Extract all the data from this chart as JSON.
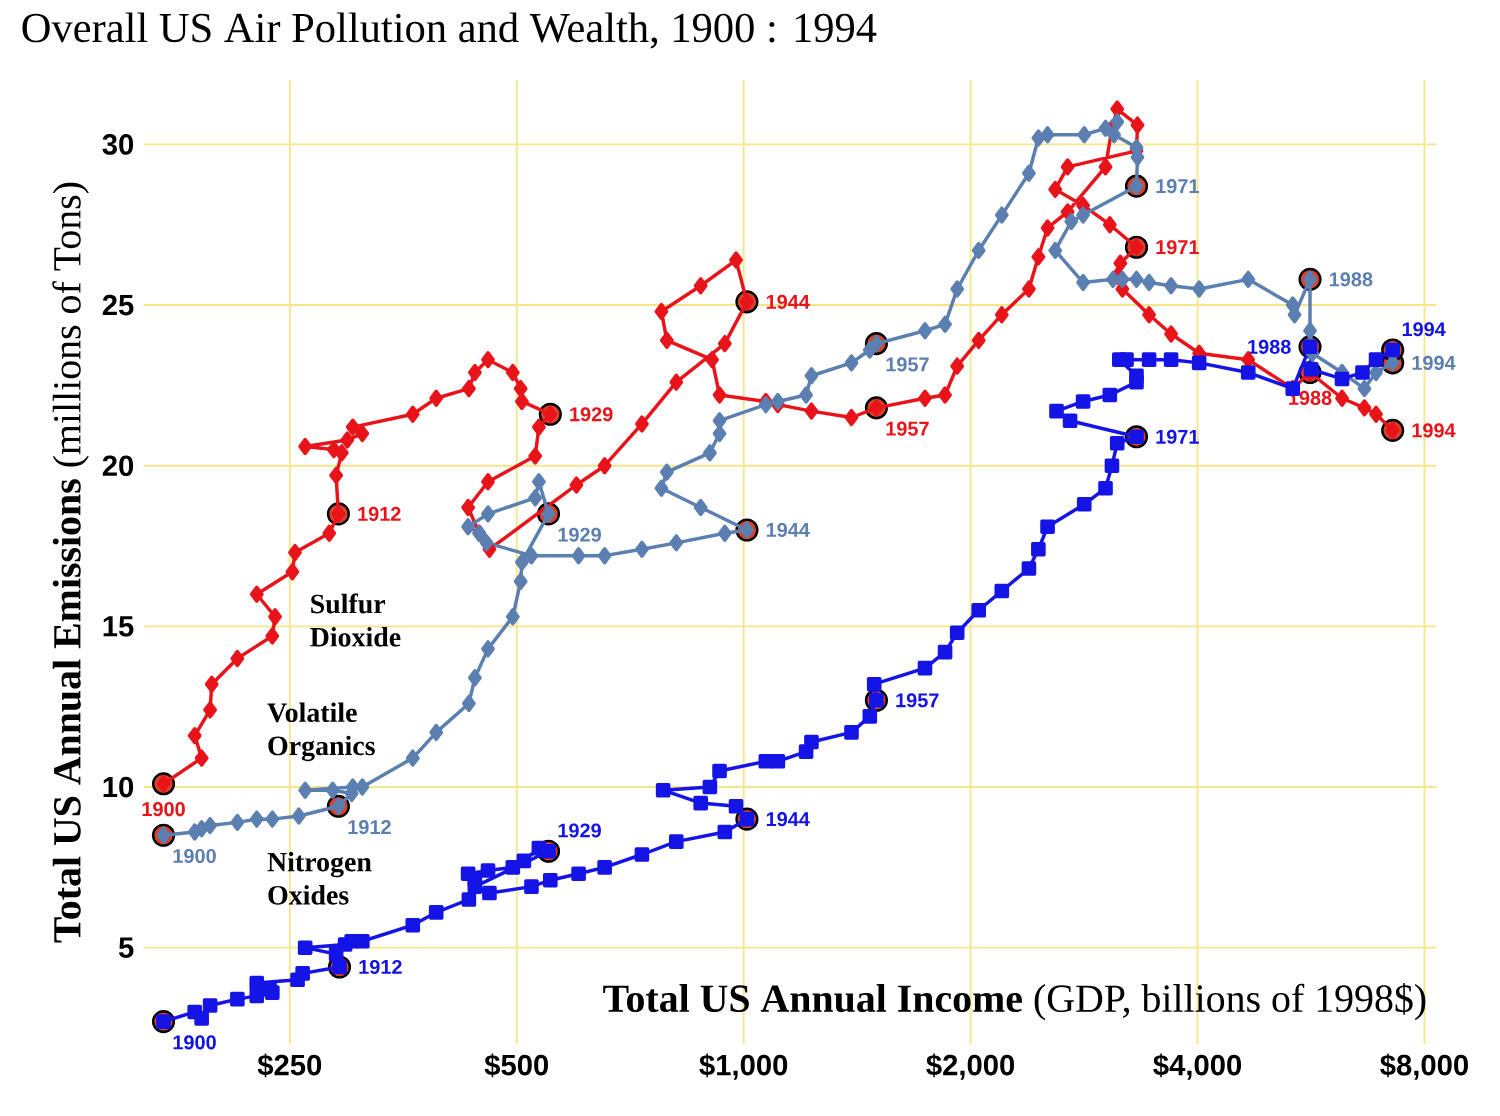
{
  "chart_data": {
    "type": "line",
    "title": "Overall US Air Pollution and Wealth, 1900 : 1994",
    "xlabel": "**Total US Annual Income** (GDP, billions of 1998$)",
    "ylabel": "**Total US Annual Emissions** (millions of Tons)",
    "log": "x",
    "xlim": [
      160,
      8300
    ],
    "ylim": [
      2,
      32
    ],
    "xticks": [
      {
        "value": 250,
        "label": "$250"
      },
      {
        "value": 500,
        "label": "$500"
      },
      {
        "value": 1000,
        "label": "$1,000"
      },
      {
        "value": 2000,
        "label": "$2,000"
      },
      {
        "value": 4000,
        "label": "$4,000"
      },
      {
        "value": 8000,
        "label": "$8,000"
      }
    ],
    "yticks": [
      5,
      10,
      15,
      20,
      25,
      30
    ],
    "grid": true,
    "legend": false,
    "marker": "diamond",
    "line_style": "solid",
    "series": [
      {
        "name": "Sulfur Dioxide",
        "color": "#e8141a",
        "x": [
          170,
          191,
          187,
          196,
          197,
          213,
          237,
          239,
          226,
          252,
          254,
          282,
          290,
          288,
          293,
          286,
          262,
          298,
          312,
          303,
          364,
          391,
          432,
          440,
          458,
          494,
          506,
          508,
          554,
          535,
          529,
          458,
          431,
          446,
          460,
          600,
          654,
          733,
          814,
          944,
          1010,
          977,
          877,
          778,
          791,
          908,
          929,
          1070,
          1110,
          1230,
          1390,
          1500,
          1740,
          1850,
          1920,
          2050,
          2200,
          2390,
          2460,
          2530,
          2690,
          3020,
          3080,
          3130,
          3330,
          3320,
          2690,
          2590,
          2820,
          3060,
          3320,
          3160,
          3130,
          3180,
          3450,
          3690,
          4020,
          4670,
          5350,
          5640,
          6220,
          6660,
          6900,
          7260
        ],
        "values": [
          10.1,
          10.9,
          11.6,
          12.4,
          13.2,
          14.0,
          14.7,
          15.3,
          16.0,
          16.7,
          17.3,
          17.9,
          18.5,
          19.7,
          20.4,
          20.5,
          20.6,
          20.8,
          21.0,
          21.2,
          21.6,
          22.1,
          22.4,
          22.9,
          23.3,
          22.9,
          22.4,
          22.0,
          21.6,
          21.2,
          20.3,
          19.5,
          18.7,
          17.9,
          17.4,
          19.4,
          20.0,
          21.3,
          22.6,
          23.8,
          25.1,
          26.4,
          25.6,
          24.8,
          23.9,
          23.3,
          22.2,
          22.0,
          21.9,
          21.7,
          21.5,
          21.8,
          22.1,
          22.2,
          23.1,
          23.9,
          24.7,
          25.5,
          26.5,
          27.4,
          27.9,
          29.3,
          30.5,
          31.1,
          30.6,
          29.8,
          29.3,
          28.6,
          28.1,
          27.5,
          26.8,
          26.3,
          25.9,
          25.5,
          24.7,
          24.1,
          23.5,
          23.3,
          22.4,
          22.9,
          22.1,
          21.8,
          21.6,
          21.1
        ]
      },
      {
        "name": "Volatile Organics",
        "color": "#5b7fb0",
        "x": [
          170,
          187,
          191,
          196,
          213,
          226,
          237,
          257,
          290,
          302,
          285,
          262,
          303,
          312,
          364,
          391,
          432,
          440,
          458,
          494,
          506,
          508,
          551,
          535,
          529,
          458,
          431,
          446,
          456,
          523,
          604,
          654,
          733,
          814,
          944,
          1010,
          877,
          778,
          791,
          902,
          929,
          929,
          1070,
          1110,
          1210,
          1230,
          1390,
          1470,
          1500,
          1740,
          1850,
          1920,
          2050,
          2200,
          2390,
          2460,
          2530,
          2830,
          3020,
          3130,
          3100,
          3320,
          3330,
          3320,
          2820,
          2720,
          2590,
          2820,
          3090,
          3180,
          3320,
          3450,
          3690,
          4020,
          4670,
          5350,
          5380,
          5640,
          5640,
          5680,
          6220,
          6660,
          6900,
          7260
        ],
        "values": [
          8.5,
          8.6,
          8.7,
          8.8,
          8.9,
          9.0,
          9.0,
          9.1,
          9.4,
          9.8,
          9.9,
          9.9,
          10.0,
          10.0,
          10.9,
          11.7,
          12.6,
          13.4,
          14.3,
          15.3,
          16.4,
          17.0,
          18.5,
          19.5,
          19.0,
          18.5,
          18.1,
          17.9,
          17.6,
          17.2,
          17.2,
          17.2,
          17.4,
          17.6,
          17.9,
          18.0,
          18.7,
          19.3,
          19.8,
          20.4,
          21.0,
          21.4,
          21.9,
          22.0,
          22.2,
          22.8,
          23.2,
          23.6,
          23.8,
          24.2,
          24.4,
          25.5,
          26.7,
          27.8,
          29.1,
          30.2,
          30.3,
          30.3,
          30.5,
          30.7,
          30.3,
          29.9,
          29.6,
          28.7,
          27.8,
          27.6,
          26.7,
          25.7,
          25.8,
          25.8,
          25.8,
          25.7,
          25.6,
          25.5,
          25.8,
          25.0,
          24.7,
          25.8,
          24.2,
          23.5,
          22.9,
          22.4,
          22.9,
          23.2
        ]
      },
      {
        "name": "Nitrogen Oxides",
        "color": "#1414e6",
        "marker": "square",
        "x": [
          170,
          187,
          191,
          196,
          213,
          226,
          237,
          235,
          226,
          256,
          260,
          291,
          288,
          262,
          296,
          302,
          312,
          364,
          391,
          432,
          440,
          431,
          458,
          494,
          511,
          535,
          551,
          440,
          460,
          523,
          554,
          604,
          654,
          733,
          814,
          944,
          1010,
          977,
          877,
          782,
          902,
          929,
          1070,
          1110,
          1210,
          1230,
          1390,
          1470,
          1500,
          1490,
          1740,
          1850,
          1920,
          2050,
          2200,
          2390,
          2460,
          2530,
          2830,
          3020,
          3080,
          3130,
          3320,
          2710,
          2600,
          2820,
          3060,
          3320,
          3320,
          3150,
          3220,
          3450,
          3690,
          4020,
          4670,
          5350,
          5640,
          5660,
          6220,
          6620,
          6900,
          7260
        ],
        "values": [
          2.7,
          3.0,
          2.8,
          3.2,
          3.4,
          3.5,
          3.6,
          3.7,
          3.9,
          4.0,
          4.2,
          4.4,
          4.8,
          5.0,
          5.1,
          5.2,
          5.2,
          5.7,
          6.1,
          6.5,
          7.1,
          7.3,
          7.4,
          7.5,
          7.7,
          8.1,
          8.0,
          6.9,
          6.7,
          6.9,
          7.1,
          7.3,
          7.5,
          7.9,
          8.3,
          8.6,
          9.0,
          9.4,
          9.5,
          9.9,
          10.0,
          10.5,
          10.8,
          10.8,
          11.1,
          11.4,
          11.7,
          12.2,
          12.7,
          13.2,
          13.7,
          14.2,
          14.8,
          15.5,
          16.1,
          16.8,
          17.4,
          18.1,
          18.8,
          19.3,
          20.0,
          20.7,
          20.9,
          21.4,
          21.7,
          22.0,
          22.2,
          22.6,
          22.8,
          23.3,
          23.3,
          23.3,
          23.3,
          23.2,
          22.9,
          22.4,
          23.7,
          23.0,
          22.7,
          22.9,
          23.3,
          23.6
        ]
      }
    ],
    "annotations": [
      {
        "text": "1900",
        "x": 170,
        "y": 10.1
      },
      {
        "text": "1912",
        "x": 290,
        "y": 18.5
      },
      {
        "text": "1929",
        "x": 554,
        "y": 21.6
      },
      {
        "text": "1944",
        "x": 1010,
        "y": 25.1
      },
      {
        "text": "1957",
        "x": 1500,
        "y": 21.8
      },
      {
        "text": "1971",
        "x": 3320,
        "y": 26.8
      },
      {
        "text": "1988",
        "x": 5640,
        "y": 22.9
      },
      {
        "text": "1994",
        "x": 7260,
        "y": 21.1
      },
      {
        "text": "1900",
        "x": 170,
        "y": 8.5
      },
      {
        "text": "1912",
        "x": 290,
        "y": 9.4
      },
      {
        "text": "1929",
        "x": 551,
        "y": 18.5
      },
      {
        "text": "1944",
        "x": 1010,
        "y": 18.0
      },
      {
        "text": "1957",
        "x": 1500,
        "y": 23.8
      },
      {
        "text": "1971",
        "x": 3320,
        "y": 28.7
      },
      {
        "text": "1988",
        "x": 5640,
        "y": 25.8
      },
      {
        "text": "1994",
        "x": 7260,
        "y": 23.2
      },
      {
        "text": "1900",
        "x": 170,
        "y": 2.7
      },
      {
        "text": "1912",
        "x": 291,
        "y": 4.4
      },
      {
        "text": "1929",
        "x": 551,
        "y": 8.0
      },
      {
        "text": "1944",
        "x": 1010,
        "y": 9.0
      },
      {
        "text": "1957",
        "x": 1500,
        "y": 12.7
      },
      {
        "text": "1971",
        "x": 3320,
        "y": 20.9
      },
      {
        "text": "1988",
        "x": 5640,
        "y": 23.7
      },
      {
        "text": "1994",
        "x": 7260,
        "y": 23.6
      }
    ]
  }
}
